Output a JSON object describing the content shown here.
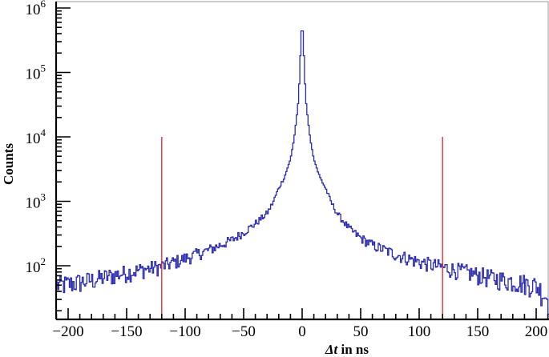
{
  "chart_data": {
    "type": "line",
    "subtype": "step-histogram",
    "title": "",
    "xlabel": "Δt in ns",
    "xlabel_italic_part": "Δt",
    "xlabel_rest": " in ns",
    "ylabel": "Counts",
    "yscale": "log",
    "xlim": [
      -210,
      211
    ],
    "ylim": [
      15,
      1000000
    ],
    "grid": false,
    "legend": null,
    "x_ticks": [
      -200,
      -150,
      -100,
      -50,
      0,
      50,
      100,
      150,
      200
    ],
    "x_tick_labels": [
      "−200",
      "−150",
      "−100",
      "−50",
      "0",
      "50",
      "100",
      "150",
      "200"
    ],
    "y_ticks": [
      100,
      1000,
      10000,
      100000,
      1000000
    ],
    "y_tick_labels": [
      {
        "base": "10",
        "exp": "2"
      },
      {
        "base": "10",
        "exp": "3"
      },
      {
        "base": "10",
        "exp": "4"
      },
      {
        "base": "10",
        "exp": "5"
      },
      {
        "base": "10",
        "exp": "6"
      }
    ],
    "series": [
      {
        "name": "Counts",
        "color": "#2b2bb0",
        "x": [
          -210,
          -200,
          -180,
          -160,
          -140,
          -120,
          -100,
          -80,
          -60,
          -50,
          -40,
          -30,
          -25,
          -20,
          -15,
          -10,
          -7,
          -5,
          -3,
          -2,
          -1,
          0,
          1,
          2,
          3,
          5,
          7,
          10,
          15,
          20,
          25,
          30,
          40,
          50,
          60,
          80,
          100,
          120,
          140,
          160,
          180,
          200,
          205,
          211
        ],
        "values": [
          50,
          52,
          60,
          72,
          85,
          98,
          130,
          175,
          250,
          330,
          450,
          650,
          950,
          1600,
          2400,
          4500,
          9000,
          18000,
          40000,
          110000,
          300000,
          650000,
          300000,
          110000,
          40000,
          18000,
          9000,
          4500,
          2400,
          1600,
          950,
          650,
          380,
          270,
          210,
          150,
          115,
          95,
          80,
          66,
          58,
          50,
          40,
          30
        ]
      }
    ],
    "annotations": [
      {
        "type": "vline",
        "x": -120,
        "y_from": 15,
        "y_to": 10000,
        "color": "#e8202a"
      },
      {
        "type": "vline",
        "x": 120,
        "y_from": 15,
        "y_to": 10000,
        "color": "#e8202a"
      }
    ]
  },
  "colors": {
    "series": "#2b2bb0",
    "cut_lines": "#e8202a",
    "axes": "#000000",
    "frame": "#9a9a9a"
  }
}
